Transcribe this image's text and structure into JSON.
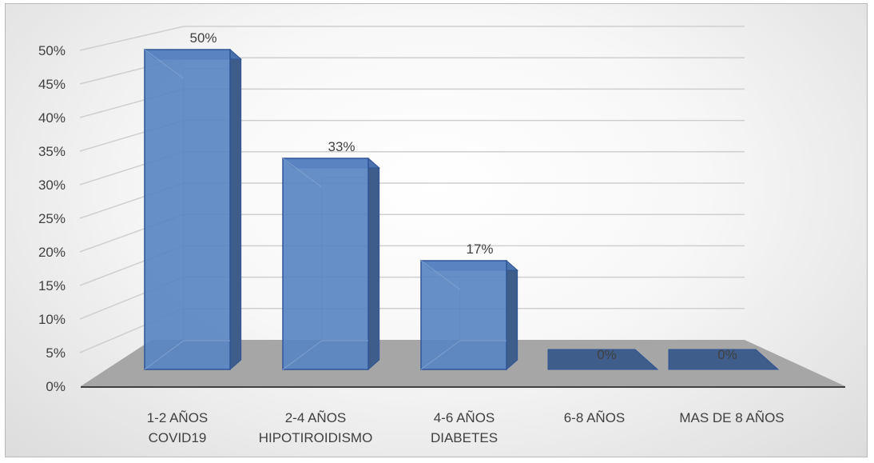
{
  "chart_data": {
    "type": "bar",
    "title": "",
    "xlabel": "",
    "ylabel": "",
    "categories": [
      [
        "1-2 AÑOS",
        "COVID19"
      ],
      [
        "2-4 AÑOS",
        "HIPOTIROIDISMO"
      ],
      [
        "4-6 AÑOS",
        "DIABETES"
      ],
      [
        "6-8 AÑOS"
      ],
      [
        "MAS DE 8 AÑOS"
      ]
    ],
    "values": [
      50,
      33,
      17,
      0,
      0
    ],
    "data_labels": [
      "50%",
      "33%",
      "17%",
      "0%",
      "0%"
    ],
    "yticks": [
      "0%",
      "5%",
      "10%",
      "15%",
      "20%",
      "25%",
      "30%",
      "35%",
      "40%",
      "45%",
      "50%"
    ],
    "ylim": [
      0,
      50
    ],
    "grid": true,
    "legend": "none",
    "style": "3d",
    "colors": {
      "bar_front": "#5a85c2",
      "bar_side": "#3e5d8b",
      "bar_top": "#4a72ad",
      "bar_edge": "#2f5597",
      "floor": "#a6a6a6",
      "text": "#404040"
    }
  }
}
